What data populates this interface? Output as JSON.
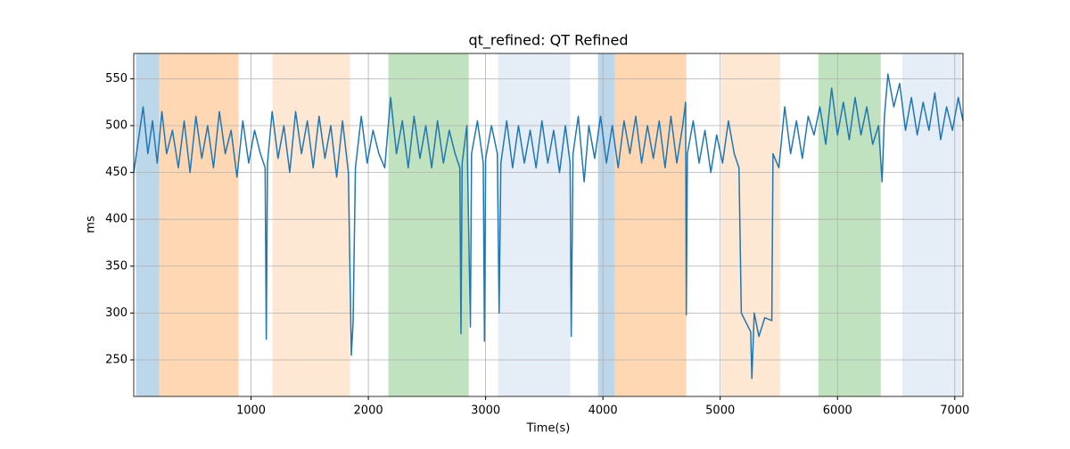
{
  "chart_data": {
    "type": "line",
    "title": "qt_refined: QT Refined",
    "x_label": "Time(s)",
    "y_label": "ms",
    "xlim": [
      0,
      7070
    ],
    "ylim": [
      211,
      577
    ],
    "xticks": [
      1000,
      2000,
      3000,
      4000,
      5000,
      6000,
      7000
    ],
    "yticks": [
      250,
      300,
      350,
      400,
      450,
      500,
      550
    ],
    "grid": true,
    "spans": [
      {
        "start": 19,
        "end": 217,
        "color": "#bcd6ea"
      },
      {
        "start": 217,
        "end": 894,
        "color": "#ffd8b3"
      },
      {
        "start": 1183,
        "end": 1844,
        "color": "#fee8d3"
      },
      {
        "start": 2171,
        "end": 2856,
        "color": "#c0e2bf"
      },
      {
        "start": 3106,
        "end": 3722,
        "color": "#e5edf7"
      },
      {
        "start": 3958,
        "end": 4103,
        "color": "#bcd6ea"
      },
      {
        "start": 4103,
        "end": 4711,
        "color": "#ffd8b3"
      },
      {
        "start": 5008,
        "end": 5510,
        "color": "#fee8d3"
      },
      {
        "start": 5837,
        "end": 6369,
        "color": "#c0e2bf"
      },
      {
        "start": 6551,
        "end": 7053,
        "color": "#e5edf7"
      }
    ],
    "series": [
      {
        "color": "#1f77b4",
        "x": [
          0,
          40,
          80,
          120,
          160,
          200,
          240,
          280,
          330,
          380,
          430,
          480,
          530,
          580,
          630,
          680,
          730,
          780,
          830,
          880,
          930,
          980,
          1030,
          1080,
          1120,
          1130,
          1140,
          1180,
          1230,
          1280,
          1330,
          1380,
          1430,
          1480,
          1530,
          1580,
          1630,
          1680,
          1730,
          1780,
          1830,
          1855,
          1870,
          1890,
          1940,
          1990,
          2040,
          2090,
          2140,
          2190,
          2240,
          2290,
          2340,
          2390,
          2440,
          2490,
          2540,
          2590,
          2640,
          2690,
          2740,
          2780,
          2790,
          2800,
          2840,
          2870,
          2880,
          2930,
          2980,
          2990,
          3000,
          3050,
          3100,
          3115,
          3130,
          3180,
          3230,
          3280,
          3330,
          3380,
          3430,
          3480,
          3530,
          3580,
          3630,
          3680,
          3720,
          3730,
          3745,
          3790,
          3840,
          3880,
          3930,
          3980,
          4030,
          4080,
          4130,
          4180,
          4230,
          4280,
          4330,
          4380,
          4430,
          4480,
          4530,
          4580,
          4630,
          4680,
          4705,
          4711,
          4720,
          4770,
          4820,
          4870,
          4920,
          4970,
          5020,
          5070,
          5120,
          5160,
          5180,
          5220,
          5260,
          5270,
          5290,
          5330,
          5380,
          5440,
          5450,
          5500,
          5550,
          5600,
          5650,
          5700,
          5750,
          5800,
          5850,
          5900,
          5950,
          6000,
          6050,
          6100,
          6150,
          6200,
          6250,
          6300,
          6350,
          6380,
          6400,
          6430,
          6480,
          6530,
          6580,
          6630,
          6680,
          6730,
          6780,
          6830,
          6880,
          6930,
          6980,
          7030,
          7070
        ],
        "values": [
          450,
          485,
          520,
          470,
          505,
          460,
          515,
          470,
          495,
          455,
          505,
          450,
          510,
          465,
          500,
          455,
          515,
          470,
          495,
          445,
          505,
          460,
          495,
          470,
          455,
          272,
          460,
          515,
          465,
          500,
          450,
          515,
          470,
          505,
          455,
          510,
          465,
          500,
          445,
          505,
          450,
          255,
          290,
          455,
          510,
          460,
          495,
          470,
          455,
          530,
          470,
          505,
          455,
          510,
          465,
          500,
          455,
          505,
          460,
          495,
          470,
          455,
          278,
          460,
          500,
          285,
          470,
          505,
          460,
          270,
          465,
          500,
          470,
          300,
          460,
          505,
          455,
          500,
          460,
          495,
          455,
          505,
          460,
          495,
          450,
          500,
          460,
          275,
          470,
          510,
          440,
          500,
          465,
          510,
          460,
          500,
          455,
          505,
          470,
          510,
          460,
          500,
          465,
          505,
          455,
          510,
          460,
          500,
          525,
          298,
          470,
          505,
          460,
          495,
          450,
          490,
          460,
          505,
          470,
          455,
          300,
          290,
          280,
          230,
          300,
          275,
          295,
          292,
          470,
          455,
          520,
          470,
          505,
          465,
          510,
          490,
          520,
          480,
          540,
          490,
          525,
          485,
          530,
          490,
          520,
          480,
          500,
          440,
          510,
          555,
          520,
          545,
          495,
          530,
          490,
          525,
          495,
          535,
          485,
          520,
          495,
          530,
          505
        ]
      }
    ]
  }
}
